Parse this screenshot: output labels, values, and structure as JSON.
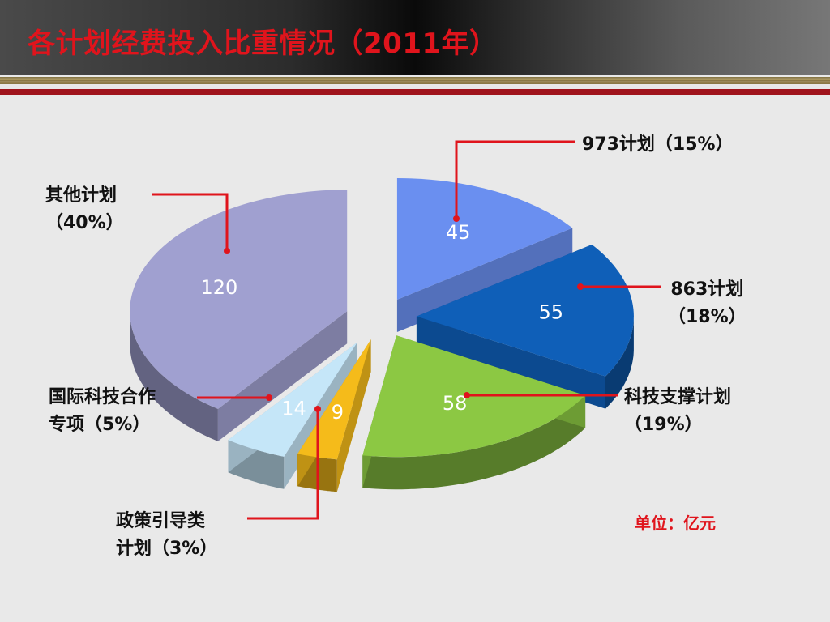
{
  "slide": {
    "title": "各计划经费投入比重情况（2011年）",
    "unit": "单位：亿元"
  },
  "chart_data": {
    "type": "pie",
    "title": "各计划经费投入比重情况（2011年）",
    "unit": "单位：亿元",
    "slices": [
      {
        "name": "973计划",
        "value": 45,
        "percent": "15%",
        "color": "#6a8ff0"
      },
      {
        "name": "863计划",
        "value": 55,
        "percent": "18%",
        "color": "#0f5fb8"
      },
      {
        "name": "科技支撑计划",
        "value": 58,
        "percent": "19%",
        "color": "#8cc843"
      },
      {
        "name": "政策引导类计划",
        "value": 9,
        "percent": "3%",
        "color": "#f5bb1a"
      },
      {
        "name": "国际科技合作专项",
        "value": 14,
        "percent": "5%",
        "color": "#c5e6f8"
      },
      {
        "name": "其他计划",
        "value": 120,
        "percent": "40%",
        "color": "#a0a0d0"
      }
    ]
  },
  "labels": {
    "s973": {
      "line1": "973计划（15%）"
    },
    "s863": {
      "line1": "863计划",
      "line2": "（18%）"
    },
    "support": {
      "line1": "科技支撑计划",
      "line2": "（19%）"
    },
    "policy": {
      "line1": "政策引导类",
      "line2": "计划（3%）"
    },
    "intl": {
      "line1": "国际科技合作",
      "line2": "专项（5%）"
    },
    "other": {
      "line1": "其他计划",
      "line2": "（40%）"
    }
  }
}
